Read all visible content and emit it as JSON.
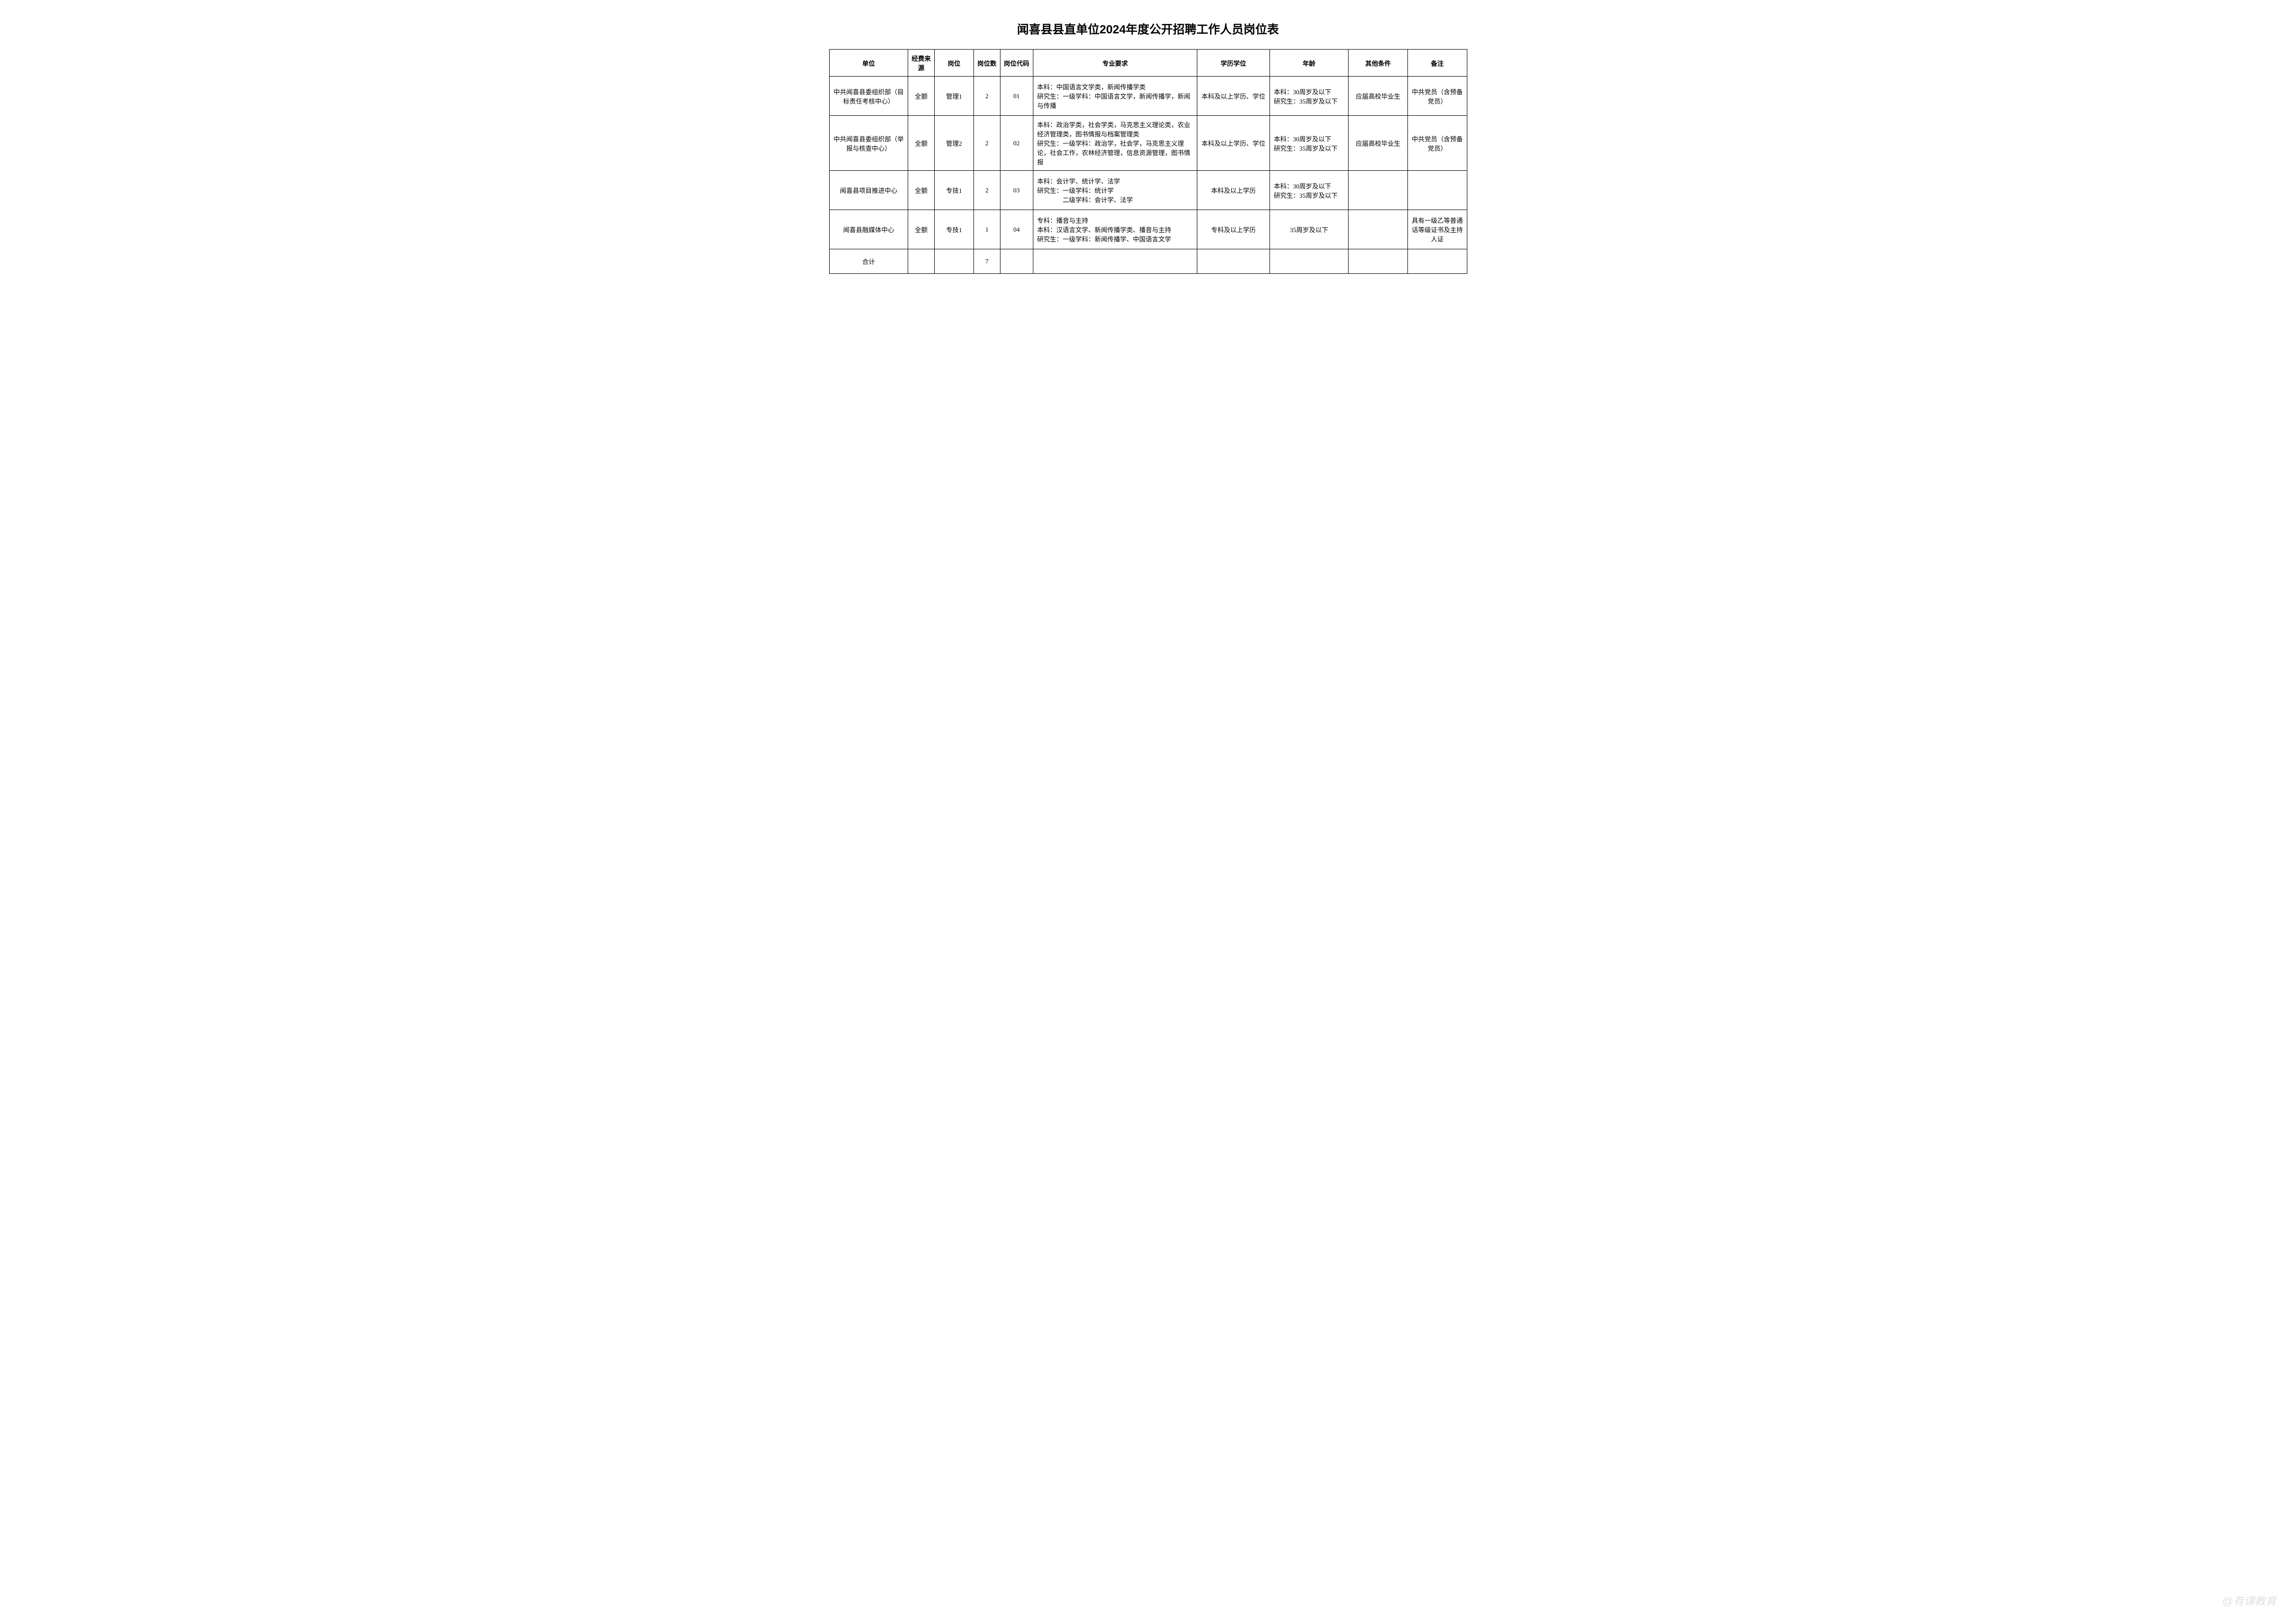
{
  "title": "闻喜县县直单位2024年度公开招聘工作人员岗位表",
  "headers": {
    "unit": "单位",
    "funding": "经费来源",
    "position": "岗位",
    "count": "岗位数",
    "code": "岗位代码",
    "major": "专业要求",
    "education": "学历学位",
    "age": "年龄",
    "other": "其他条件",
    "remark": "备注"
  },
  "rows": [
    {
      "unit": "中共闻喜县委组织部（目标责任考核中心）",
      "funding": "全额",
      "position": "管理1",
      "count": "2",
      "code": "01",
      "major": "本科：中国语言文学类，新闻传播学类\n研究生：一级学科：中国语言文学，新闻传播学，新闻与传播",
      "education": "本科及以上学历、学位",
      "age": "本科：30周岁及以下\n研究生：35周岁及以下",
      "other": "应届高校毕业生",
      "remark": "中共党员（含预备党员）"
    },
    {
      "unit": "中共闻喜县委组织部（举报与核查中心）",
      "funding": "全额",
      "position": "管理2",
      "count": "2",
      "code": "02",
      "major": "本科：政治学类，社会学类，马克思主义理论类，农业经济管理类，图书情报与档案管理类\n研究生：一级学科：政治学，社会学，马克思主义理论，社会工作，农林经济管理，信息资源管理，图书情报",
      "education": "本科及以上学历、学位",
      "age": "本科：30周岁及以下\n研究生：35周岁及以下",
      "other": "应届高校毕业生",
      "remark": "中共党员（含预备党员）"
    },
    {
      "unit": "闻喜县项目推进中心",
      "funding": "全额",
      "position": "专技1",
      "count": "2",
      "code": "03",
      "major": "本科：会计学、统计学、法学\n研究生：一级学科：统计学\n　　　　二级学科：会计学、法学",
      "education": "本科及以上学历",
      "age": "本科：30周岁及以下\n研究生：35周岁及以下",
      "other": "",
      "remark": ""
    },
    {
      "unit": "闻喜县融媒体中心",
      "funding": "全额",
      "position": "专技1",
      "count": "1",
      "code": "04",
      "major": "专科：播音与主持\n本科：汉语言文学、新闻传播学类、播音与主持\n研究生：一级学科：新闻传播学、中国语言文学",
      "education": "专科及以上学历",
      "age": "35周岁及以下",
      "other": "",
      "remark": "具有一级乙等普通话等级证书及主持人证"
    }
  ],
  "total": {
    "label": "合计",
    "count": "7"
  },
  "watermark": "@有课教育",
  "styles": {
    "background_color": "#ffffff",
    "border_color": "#000000",
    "text_color": "#000000",
    "title_fontsize": 24,
    "header_fontsize": 13,
    "cell_fontsize": 13,
    "watermark_color": "#cccccc"
  }
}
